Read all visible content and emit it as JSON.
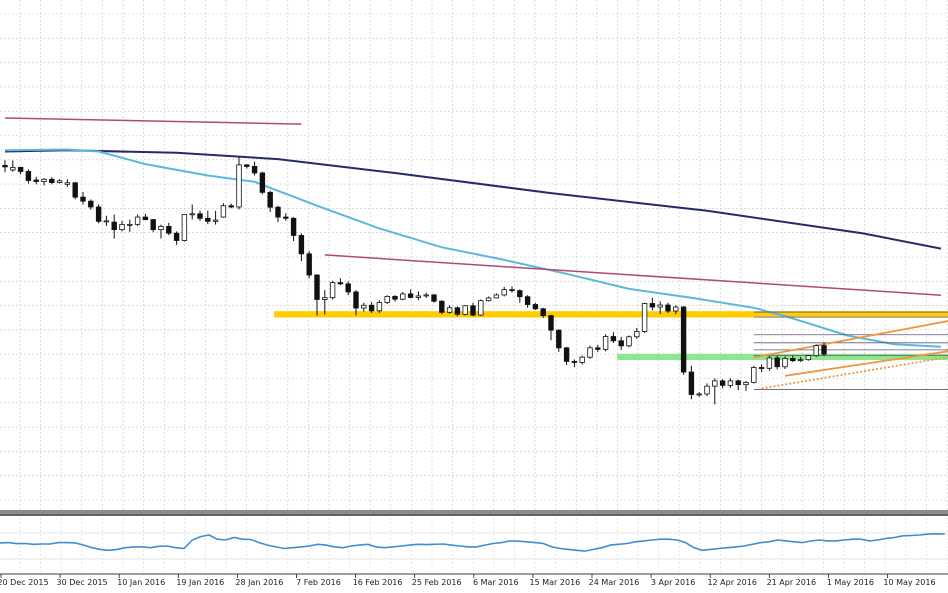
{
  "chart_data": {
    "type": "candlestick",
    "title": "",
    "xlabel": "",
    "ylabel": "",
    "grid": true,
    "x_tick_labels": [
      "20 Dec 2015",
      "30 Dec 2015",
      "10 Jan 2016",
      "19 Jan 2016",
      "28 Jan 2016",
      "7 Feb 2016",
      "16 Feb 2016",
      "25 Feb 2016",
      "6 Mar 2016",
      "15 Mar 2016",
      "24 Mar 2016",
      "3 Apr 2016",
      "12 Apr 2016",
      "21 Apr 2016",
      "1 May 2016",
      "10 May 2016"
    ],
    "price_range": [
      0,
      100
    ],
    "candles": [
      {
        "o": 80.0,
        "h": 82.0,
        "l": 77.3,
        "c": 79.4
      },
      {
        "o": 78.2,
        "h": 82.0,
        "l": 77.5,
        "c": 79.2
      },
      {
        "o": 79.2,
        "h": 79.5,
        "l": 76.5,
        "c": 77.6
      },
      {
        "o": 77.6,
        "h": 78.5,
        "l": 72.8,
        "c": 74.0
      },
      {
        "o": 74.2,
        "h": 75.5,
        "l": 72.5,
        "c": 73.6
      },
      {
        "o": 73.6,
        "h": 75.0,
        "l": 72.0,
        "c": 74.5
      },
      {
        "o": 74.5,
        "h": 75.3,
        "l": 72.5,
        "c": 73.2
      },
      {
        "o": 73.2,
        "h": 74.5,
        "l": 72.8,
        "c": 73.9
      },
      {
        "o": 72.5,
        "h": 74.5,
        "l": 71.5,
        "c": 73.1
      },
      {
        "o": 73.1,
        "h": 73.5,
        "l": 66.5,
        "c": 67.4
      },
      {
        "o": 67.4,
        "h": 69.5,
        "l": 64.5,
        "c": 65.8
      },
      {
        "o": 65.8,
        "h": 66.5,
        "l": 62.4,
        "c": 63.5
      },
      {
        "o": 63.5,
        "h": 64.5,
        "l": 57.0,
        "c": 57.8
      },
      {
        "o": 57.8,
        "h": 60.0,
        "l": 56.0,
        "c": 58.0
      },
      {
        "o": 57.5,
        "h": 60.5,
        "l": 51.0,
        "c": 54.5
      },
      {
        "o": 54.5,
        "h": 58.0,
        "l": 53.8,
        "c": 56.6
      },
      {
        "o": 56.6,
        "h": 58.5,
        "l": 53.6,
        "c": 56.6
      },
      {
        "o": 56.6,
        "h": 60.5,
        "l": 56.0,
        "c": 59.5
      },
      {
        "o": 59.5,
        "h": 60.8,
        "l": 58.2,
        "c": 58.5
      },
      {
        "o": 58.5,
        "h": 58.7,
        "l": 53.5,
        "c": 54.5
      },
      {
        "o": 54.5,
        "h": 56.5,
        "l": 51.0,
        "c": 55.8
      },
      {
        "o": 55.8,
        "h": 57.2,
        "l": 52.3,
        "c": 53.1
      },
      {
        "o": 53.1,
        "h": 53.8,
        "l": 48.5,
        "c": 50.2
      },
      {
        "o": 50.2,
        "h": 60.5,
        "l": 49.8,
        "c": 60.5
      },
      {
        "o": 60.5,
        "h": 64.5,
        "l": 58.5,
        "c": 60.8
      },
      {
        "o": 60.8,
        "h": 62.0,
        "l": 58.0,
        "c": 59.0
      },
      {
        "o": 59.0,
        "h": 62.0,
        "l": 56.7,
        "c": 57.8
      },
      {
        "o": 57.8,
        "h": 62.0,
        "l": 56.5,
        "c": 58.3
      },
      {
        "o": 59.5,
        "h": 65.0,
        "l": 59.2,
        "c": 64.0
      },
      {
        "o": 64.0,
        "h": 64.8,
        "l": 63.0,
        "c": 63.5
      },
      {
        "o": 63.5,
        "h": 83.5,
        "l": 62.5,
        "c": 80.2
      },
      {
        "o": 80.2,
        "h": 80.5,
        "l": 78.8,
        "c": 79.6
      },
      {
        "o": 79.6,
        "h": 81.5,
        "l": 76.0,
        "c": 77.0
      },
      {
        "o": 77.0,
        "h": 77.5,
        "l": 68.5,
        "c": 69.3
      },
      {
        "o": 69.3,
        "h": 70.0,
        "l": 61.5,
        "c": 63.4
      },
      {
        "o": 63.4,
        "h": 64.0,
        "l": 57.5,
        "c": 59.5
      },
      {
        "o": 59.5,
        "h": 61.0,
        "l": 58.0,
        "c": 59.0
      },
      {
        "o": 59.0,
        "h": 59.5,
        "l": 50.0,
        "c": 52.2
      },
      {
        "o": 52.2,
        "h": 53.0,
        "l": 42.0,
        "c": 44.9
      },
      {
        "o": 44.9,
        "h": 46.0,
        "l": 35.2,
        "c": 36.5
      },
      {
        "o": 36.5,
        "h": 36.8,
        "l": 20.4,
        "c": 26.8
      },
      {
        "o": 26.8,
        "h": 30.5,
        "l": 20.8,
        "c": 27.5
      },
      {
        "o": 27.5,
        "h": 34.2,
        "l": 26.8,
        "c": 33.5
      },
      {
        "o": 33.5,
        "h": 35.2,
        "l": 32.5,
        "c": 33.0
      },
      {
        "o": 33.0,
        "h": 34.0,
        "l": 28.5,
        "c": 29.8
      },
      {
        "o": 29.8,
        "h": 30.5,
        "l": 20.5,
        "c": 23.4
      },
      {
        "o": 23.4,
        "h": 25.5,
        "l": 22.0,
        "c": 24.5
      },
      {
        "o": 24.5,
        "h": 25.8,
        "l": 21.5,
        "c": 22.3
      },
      {
        "o": 22.3,
        "h": 26.5,
        "l": 21.5,
        "c": 25.6
      },
      {
        "o": 25.6,
        "h": 28.5,
        "l": 25.0,
        "c": 28.0
      },
      {
        "o": 28.0,
        "h": 28.5,
        "l": 26.0,
        "c": 26.9
      },
      {
        "o": 26.9,
        "h": 29.8,
        "l": 26.5,
        "c": 29.0
      },
      {
        "o": 29.0,
        "h": 30.8,
        "l": 27.2,
        "c": 27.6
      },
      {
        "o": 27.6,
        "h": 30.0,
        "l": 26.5,
        "c": 28.2
      },
      {
        "o": 28.2,
        "h": 29.5,
        "l": 27.4,
        "c": 28.6
      },
      {
        "o": 28.6,
        "h": 29.0,
        "l": 25.5,
        "c": 26.1
      },
      {
        "o": 26.1,
        "h": 26.5,
        "l": 21.0,
        "c": 21.7
      },
      {
        "o": 21.7,
        "h": 24.5,
        "l": 21.2,
        "c": 23.5
      },
      {
        "o": 23.5,
        "h": 24.0,
        "l": 20.1,
        "c": 20.9
      },
      {
        "o": 20.9,
        "h": 24.5,
        "l": 20.5,
        "c": 24.3
      },
      {
        "o": 24.3,
        "h": 25.5,
        "l": 20.2,
        "c": 20.6
      },
      {
        "o": 20.6,
        "h": 26.8,
        "l": 20.3,
        "c": 26.3
      },
      {
        "o": 26.3,
        "h": 28.0,
        "l": 26.0,
        "c": 27.4
      },
      {
        "o": 27.4,
        "h": 29.2,
        "l": 27.2,
        "c": 28.6
      },
      {
        "o": 28.6,
        "h": 31.8,
        "l": 28.0,
        "c": 30.7
      },
      {
        "o": 30.7,
        "h": 32.0,
        "l": 29.5,
        "c": 30.3
      },
      {
        "o": 30.3,
        "h": 30.8,
        "l": 25.5,
        "c": 27.9
      },
      {
        "o": 27.9,
        "h": 28.5,
        "l": 23.5,
        "c": 24.8
      },
      {
        "o": 24.8,
        "h": 25.5,
        "l": 22.7,
        "c": 23.1
      },
      {
        "o": 23.1,
        "h": 23.5,
        "l": 19.5,
        "c": 20.4
      },
      {
        "o": 20.4,
        "h": 20.7,
        "l": 10.6,
        "c": 14.6
      },
      {
        "o": 14.6,
        "h": 15.0,
        "l": 6.0,
        "c": 7.6
      },
      {
        "o": 7.6,
        "h": 8.0,
        "l": 0.8,
        "c": 2.2
      },
      {
        "o": 2.2,
        "h": 3.0,
        "l": -0.1,
        "c": 1.8
      },
      {
        "o": 1.8,
        "h": 4.5,
        "l": 1.0,
        "c": 3.9
      },
      {
        "o": 3.9,
        "h": 8.5,
        "l": 3.2,
        "c": 7.6
      },
      {
        "o": 7.6,
        "h": 8.8,
        "l": 6.0,
        "c": 7.0
      },
      {
        "o": 7.0,
        "h": 13.0,
        "l": 6.2,
        "c": 12.1
      },
      {
        "o": 12.1,
        "h": 13.8,
        "l": 9.5,
        "c": 10.4
      },
      {
        "o": 10.4,
        "h": 12.0,
        "l": 6.8,
        "c": 8.4
      },
      {
        "o": 8.4,
        "h": 12.5,
        "l": 7.8,
        "c": 12.0
      },
      {
        "o": 12.0,
        "h": 15.5,
        "l": 11.2,
        "c": 14.1
      },
      {
        "o": 14.1,
        "h": 25.5,
        "l": 13.5,
        "c": 25.2
      },
      {
        "o": 25.2,
        "h": 27.5,
        "l": 22.5,
        "c": 23.8
      },
      {
        "o": 23.8,
        "h": 26.0,
        "l": 21.0,
        "c": 24.6
      },
      {
        "o": 24.6,
        "h": 25.5,
        "l": 21.5,
        "c": 22.2
      },
      {
        "o": 22.2,
        "h": 24.5,
        "l": 21.0,
        "c": 23.8
      },
      {
        "o": 23.8,
        "h": 24.2,
        "l": -3.1,
        "c": -2.0
      },
      {
        "o": -2.0,
        "h": 0.5,
        "l": -12.8,
        "c": -10.9
      },
      {
        "o": -10.9,
        "h": -10.0,
        "l": -11.8,
        "c": -10.7
      },
      {
        "o": -10.7,
        "h": -6.5,
        "l": -11.5,
        "c": -7.6
      },
      {
        "o": -7.6,
        "h": -4.5,
        "l": -14.8,
        "c": -5.5
      },
      {
        "o": -5.5,
        "h": -4.8,
        "l": -8.5,
        "c": -7.3
      },
      {
        "o": -7.3,
        "h": -4.5,
        "l": -8.3,
        "c": -5.5
      },
      {
        "o": -5.5,
        "h": -5.0,
        "l": -9.2,
        "c": -7.0
      },
      {
        "o": -7.0,
        "h": -5.5,
        "l": -9.5,
        "c": -6.1
      },
      {
        "o": -6.1,
        "h": 0.5,
        "l": -6.5,
        "c": -0.2
      },
      {
        "o": -0.2,
        "h": 1.0,
        "l": -2.0,
        "c": -0.5
      },
      {
        "o": -0.5,
        "h": 4.5,
        "l": -1.5,
        "c": 3.6
      },
      {
        "o": 3.6,
        "h": 4.5,
        "l": -1.0,
        "c": 0.1
      },
      {
        "o": 0.1,
        "h": 4.2,
        "l": -0.8,
        "c": 3.4
      },
      {
        "o": 3.4,
        "h": 4.5,
        "l": 2.0,
        "c": 2.5
      },
      {
        "o": 2.5,
        "h": 4.0,
        "l": 2.0,
        "c": 2.9
      },
      {
        "o": 2.9,
        "h": 4.8,
        "l": 2.5,
        "c": 4.5
      },
      {
        "o": 4.5,
        "h": 9.0,
        "l": 4.0,
        "c": 8.5
      },
      {
        "o": 8.5,
        "h": 9.5,
        "l": 4.3,
        "c": 5.1
      }
    ],
    "overlay_lines": [
      {
        "name": "",
        "color": "#262a6a",
        "width": 2,
        "points": [
          [
            0,
            85.5
          ],
          [
            8,
            86.0
          ],
          [
            22,
            85.0
          ],
          [
            35,
            82.5
          ],
          [
            50,
            77.0
          ],
          [
            70,
            69.0
          ],
          [
            90,
            62.0
          ],
          [
            110,
            53.0
          ],
          [
            120,
            47.0
          ]
        ]
      },
      {
        "name": "",
        "color": "#5bb8dc",
        "width": 2,
        "points": [
          [
            0,
            86.0
          ],
          [
            8,
            86.3
          ],
          [
            12,
            85.5
          ],
          [
            18,
            80.5
          ],
          [
            26,
            76.0
          ],
          [
            32,
            73.5
          ],
          [
            40,
            64.0
          ],
          [
            48,
            55.0
          ],
          [
            56,
            47.5
          ],
          [
            64,
            42.5
          ],
          [
            72,
            37.0
          ],
          [
            80,
            31.0
          ],
          [
            88,
            27.5
          ],
          [
            96,
            23.5
          ],
          [
            100,
            20.2
          ],
          [
            108,
            12.5
          ],
          [
            114,
            9.0
          ],
          [
            120,
            8.0
          ]
        ]
      },
      {
        "name": "",
        "color": "#b04a74",
        "width": 1.5,
        "points": [
          [
            0,
            98.8
          ],
          [
            38,
            96.4
          ]
        ]
      },
      {
        "name": "",
        "color": "#b04a74",
        "width": 1.5,
        "points": [
          [
            41,
            44.5
          ],
          [
            120,
            28.5
          ]
        ]
      }
    ],
    "support_zones": [
      {
        "color": "#ffcc00",
        "y_center": 20.9,
        "y_span": 2.5,
        "x_start": 34.5,
        "x_end": 120
      },
      {
        "color": "#8ee68e",
        "y_center": 4.0,
        "y_span": 2.5,
        "x_start": 78.5,
        "x_end": 120
      }
    ],
    "channel": {
      "color": "#f0963c",
      "upper": [
        [
          96,
          3.8
        ],
        [
          120,
          17.5
        ]
      ],
      "lower": [
        [
          100,
          -3.5
        ],
        [
          120,
          5.5
        ]
      ],
      "dotted": [
        [
          97,
          -8.5
        ],
        [
          120,
          3.2
        ]
      ]
    },
    "horizontal_levels": {
      "x_start": 96,
      "x_end": 120,
      "values": [
        21.8,
        19.8,
        12.8,
        9.6,
        6.8,
        4.6
      ]
    },
    "oscillator": {
      "range": [
        -1,
        1
      ],
      "values": [
        0.18,
        0.2,
        0.14,
        0.15,
        0.1,
        0.12,
        0.12,
        0.2,
        0.2,
        0.18,
        0.05,
        -0.1,
        -0.2,
        -0.25,
        -0.2,
        -0.1,
        -0.05,
        -0.05,
        -0.1,
        -0.02,
        0.0,
        -0.1,
        -0.15,
        0.35,
        0.55,
        0.65,
        0.4,
        0.35,
        0.5,
        0.4,
        0.38,
        0.2,
        0.05,
        -0.05,
        -0.15,
        -0.1,
        -0.05,
        0.0,
        0.1,
        0.05,
        -0.05,
        -0.1,
        0.0,
        0.05,
        0.1,
        -0.05,
        -0.1,
        -0.05,
        0.0,
        0.05,
        0.1,
        0.08,
        0.1,
        0.12,
        0.05,
        0.0,
        -0.05,
        -0.05,
        0.05,
        0.15,
        0.2,
        0.3,
        0.28,
        0.25,
        0.2,
        0.15,
        -0.05,
        -0.15,
        -0.2,
        -0.25,
        -0.3,
        -0.2,
        -0.1,
        0.05,
        0.1,
        0.15,
        0.25,
        0.3,
        0.35,
        0.4,
        0.4,
        0.35,
        0.2,
        -0.1,
        -0.25,
        -0.2,
        -0.15,
        -0.1,
        -0.05,
        0.0,
        0.1,
        0.2,
        0.25,
        0.35,
        0.3,
        0.25,
        0.2,
        0.3,
        0.35,
        0.3,
        0.3,
        0.35,
        0.4,
        0.4,
        0.3,
        0.35,
        0.45,
        0.5,
        0.6,
        0.62,
        0.65,
        0.7,
        0.72,
        0.7
      ]
    }
  }
}
